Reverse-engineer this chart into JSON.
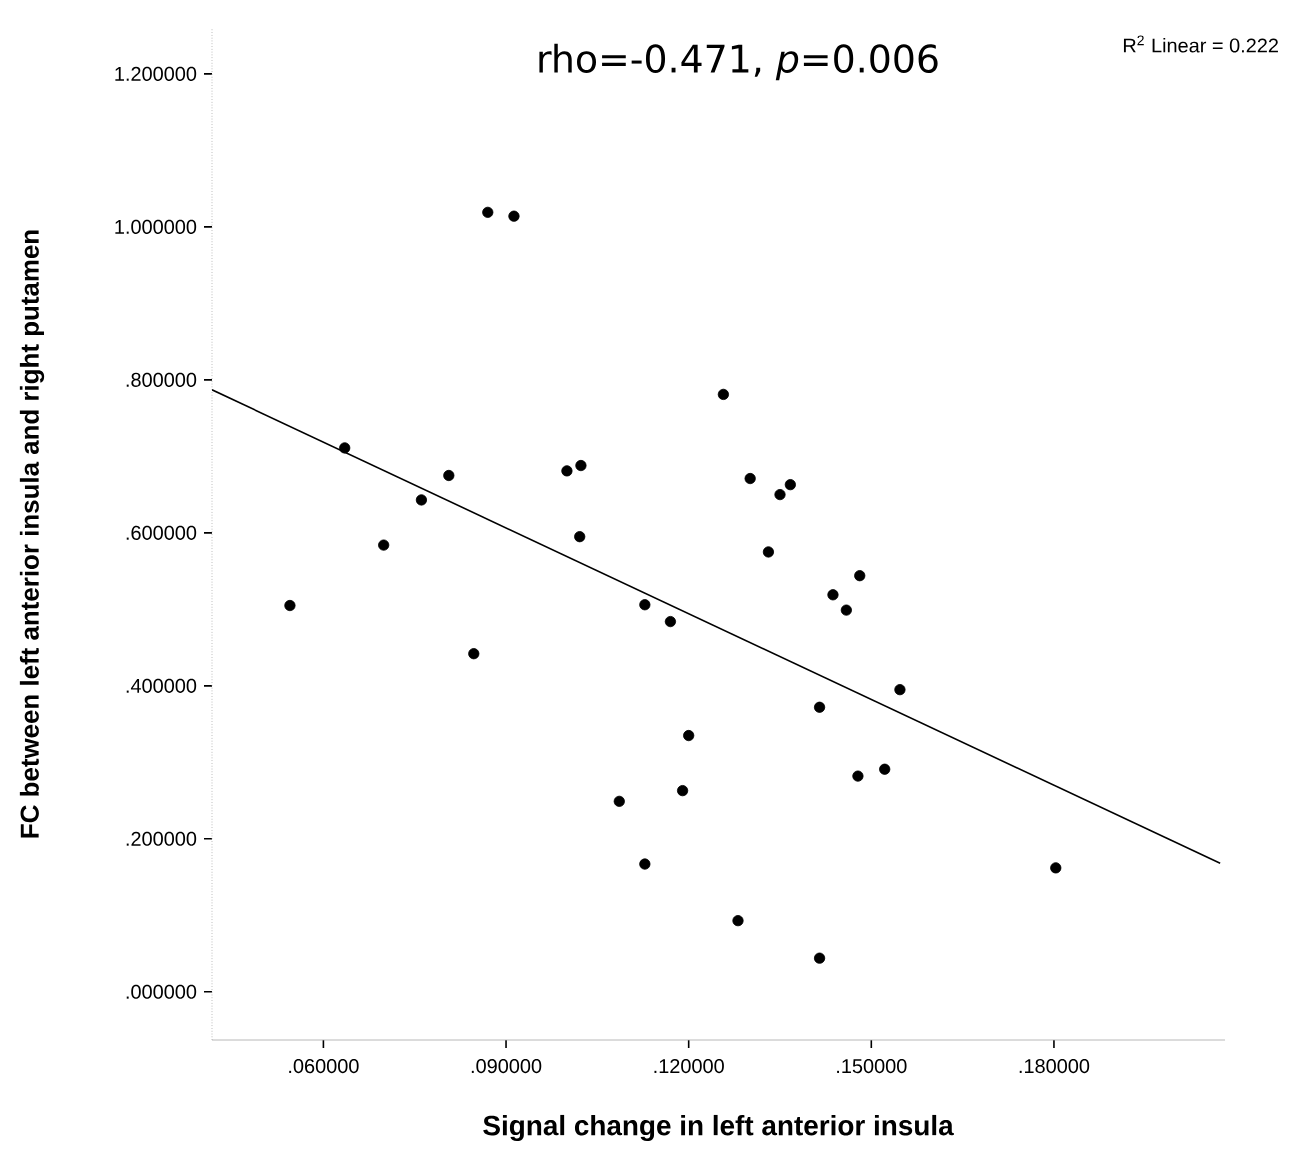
{
  "chart_data": {
    "type": "scatter",
    "title": "rho=-0.471, *p*=0.006",
    "xlabel": "Signal change in left anterior insula",
    "ylabel": "FC between left anterior insula and right putamen",
    "annotations": [
      "R$^{2}$ Linear = 0.222"
    ],
    "xlim": [
      0.0417,
      0.2081
    ],
    "ylim": [
      -0.063,
      1.26
    ],
    "xticks": [
      {
        "value": 0.06,
        "label": ".060000"
      },
      {
        "value": 0.09,
        "label": ".090000"
      },
      {
        "value": 0.12,
        "label": ".120000"
      },
      {
        "value": 0.15,
        "label": ".150000"
      },
      {
        "value": 0.18,
        "label": ".180000"
      }
    ],
    "yticks": [
      {
        "value": 0,
        "label": ".000000"
      },
      {
        "value": 0.2,
        "label": ".200000"
      },
      {
        "value": 0.4,
        "label": ".400000"
      },
      {
        "value": 0.6,
        "label": ".600000"
      },
      {
        "value": 0.8,
        "label": ".800000"
      },
      {
        "value": 1.0,
        "label": "1.000000"
      },
      {
        "value": 1.2,
        "label": "1.200000"
      }
    ],
    "marker": "circle",
    "series": [
      {
        "color": "#000000",
        "x": [
          0.0545,
          0.0635,
          0.0699,
          0.0761,
          0.0806,
          0.0847,
          0.087,
          0.0913,
          0.1,
          0.1023,
          0.1021,
          0.1128,
          0.117,
          0.1086,
          0.1128,
          0.1257,
          0.1301,
          0.135,
          0.1367,
          0.1331,
          0.1481,
          0.1437,
          0.1459,
          0.1547,
          0.1415,
          0.12,
          0.119,
          0.1478,
          0.1522,
          0.1803,
          0.1281,
          0.1415
        ],
        "values": [
          0.505,
          0.711,
          0.584,
          0.643,
          0.675,
          0.442,
          1.019,
          1.014,
          0.681,
          0.688,
          0.595,
          0.506,
          0.484,
          0.249,
          0.167,
          0.781,
          0.671,
          0.65,
          0.663,
          0.575,
          0.544,
          0.519,
          0.499,
          0.395,
          0.372,
          0.335,
          0.263,
          0.282,
          0.291,
          0.162,
          0.093,
          0.044
        ]
      },
      {
        "type": "line",
        "color": "#000000",
        "marker": "none",
        "line_style": "solid",
        "x": [
          0.0417,
          0.2073
        ],
        "values": [
          0.787,
          0.168
        ]
      }
    ]
  }
}
